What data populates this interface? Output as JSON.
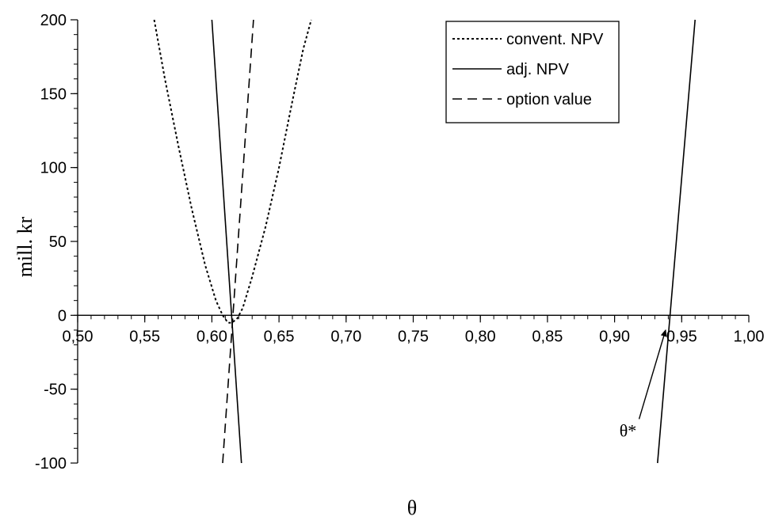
{
  "chart_data": {
    "type": "line",
    "title": "",
    "xlabel": "θ",
    "ylabel": "mill. kr",
    "xlim": [
      0.5,
      1.0
    ],
    "ylim": [
      -100,
      200
    ],
    "x_ticks": [
      0.5,
      0.55,
      0.6,
      0.65,
      0.7,
      0.75,
      0.8,
      0.85,
      0.9,
      0.95,
      1.0
    ],
    "x_tick_labels": [
      "0,50",
      "0,55",
      "0,60",
      "0,65",
      "0,70",
      "0,75",
      "0,80",
      "0,85",
      "0,90",
      "0,95",
      "1,00"
    ],
    "x_minor_step": 0.01,
    "y_ticks": [
      -100,
      -50,
      0,
      50,
      100,
      150,
      200
    ],
    "y_tick_labels": [
      "-100",
      "-50",
      "0",
      "50",
      "100",
      "150",
      "200"
    ],
    "y_minor_step": 10,
    "grid": false,
    "legend_position": "top-right",
    "series": [
      {
        "name": "convent. NPV",
        "style": "dotted",
        "color": "#000000",
        "x": [
          0.557,
          0.565,
          0.575,
          0.585,
          0.595,
          0.603,
          0.608,
          0.612,
          0.615,
          0.619,
          0.623,
          0.63,
          0.64,
          0.65,
          0.66,
          0.668,
          0.674
        ],
        "y": [
          200,
          160,
          115,
          72,
          34,
          10,
          0,
          -5,
          -5,
          -2,
          5,
          26,
          60,
          100,
          145,
          180,
          200
        ]
      },
      {
        "name": "adj. NPV",
        "style": "solid",
        "color": "#000000",
        "segments": [
          {
            "x": [
              0.6,
              0.622
            ],
            "y": [
              200,
              -100
            ]
          },
          {
            "x": [
              0.932,
              0.96
            ],
            "y": [
              -100,
              200
            ]
          }
        ]
      },
      {
        "name": "option value",
        "style": "dashed",
        "color": "#000000",
        "x": [
          0.608,
          0.631
        ],
        "y": [
          -100,
          200
        ]
      }
    ],
    "annotations": [
      {
        "text": "θ*",
        "x": 0.91,
        "y": -82,
        "arrow_to": [
          0.938,
          -10
        ]
      }
    ]
  }
}
